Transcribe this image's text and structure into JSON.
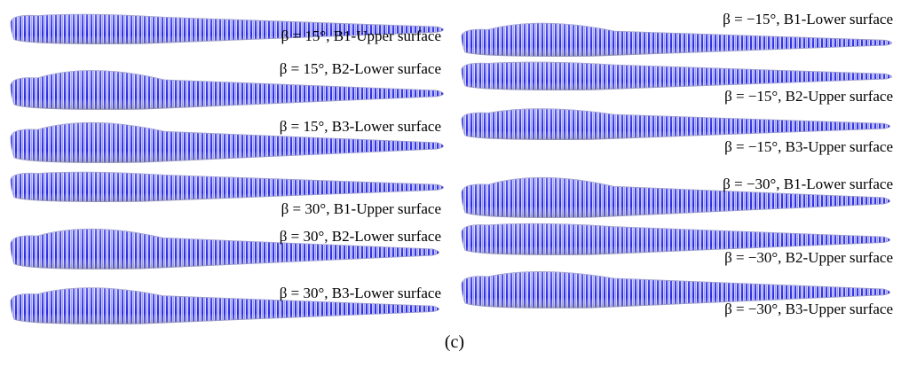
{
  "figure": {
    "left_column": [
      {
        "label": "β = 15°, B1-Upper surface"
      },
      {
        "label": "β = 15°, B2-Lower surface"
      },
      {
        "label": "β = 15°, B3-Lower surface"
      },
      {
        "label": "β = 30°, B1-Upper surface"
      },
      {
        "label": "β = 30°, B2-Lower surface"
      },
      {
        "label": "β = 30°, B3-Lower surface"
      }
    ],
    "right_column": [
      {
        "label": "β = −15°, B1-Lower surface"
      },
      {
        "label": "β = −15°, B2-Upper surface"
      },
      {
        "label": "β = −15°, B3-Upper surface"
      },
      {
        "label": "β = −30°, B1-Lower surface"
      },
      {
        "label": "β = −30°, B2-Upper surface"
      },
      {
        "label": "β = −30°, B3-Upper surface"
      }
    ],
    "caption": "(c)"
  }
}
